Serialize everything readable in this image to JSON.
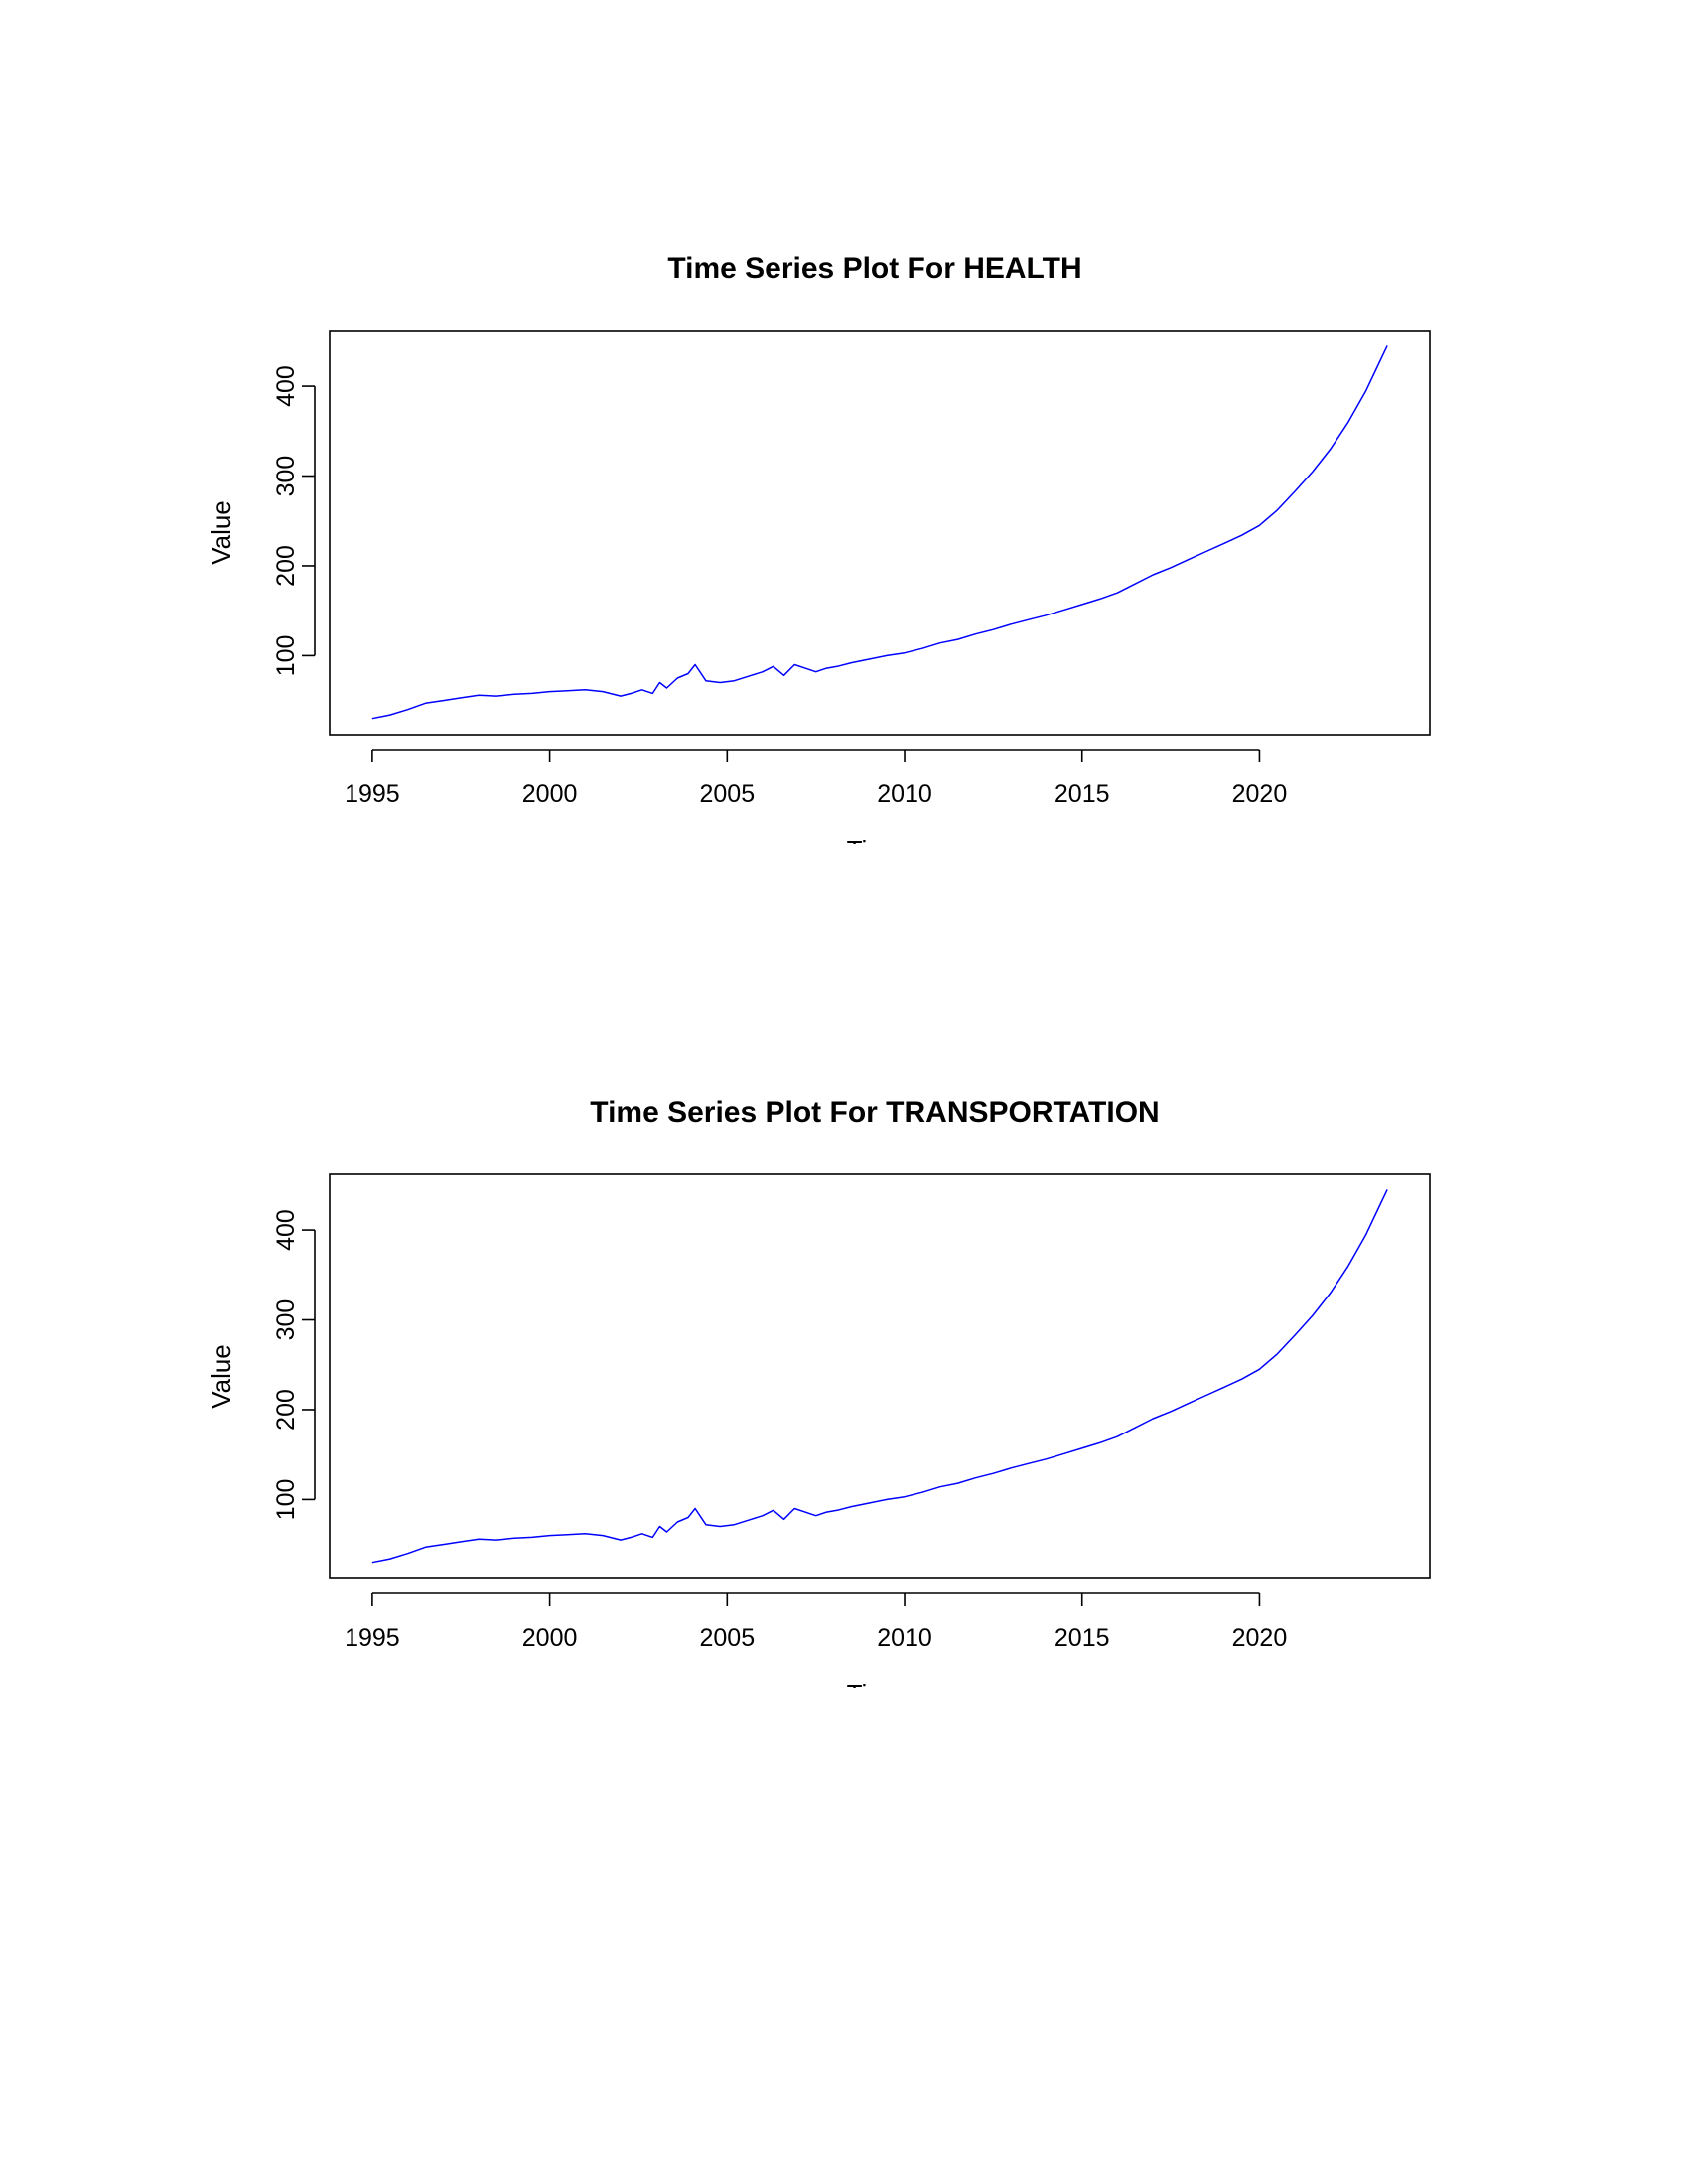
{
  "chart_data": [
    {
      "type": "line",
      "title": "Time Series Plot For HEALTH",
      "xlabel": "Time",
      "ylabel": "Value",
      "xlim": [
        1993.8,
        2024.8
      ],
      "ylim": [
        12,
        462
      ],
      "x_ticks": [
        1995,
        2000,
        2005,
        2010,
        2015,
        2020
      ],
      "y_ticks": [
        100,
        200,
        300,
        400
      ],
      "grid": false,
      "color": "#0000ff",
      "series": [
        {
          "x": [
            1995.0,
            1995.5,
            1996.0,
            1996.5,
            1997.0,
            1997.5,
            1998.0,
            1998.5,
            1999.0,
            1999.5,
            2000.0,
            2000.5,
            2001.0,
            2001.5,
            2002.0,
            2002.3,
            2002.6,
            2002.9,
            2003.1,
            2003.3,
            2003.6,
            2003.9,
            2004.1,
            2004.4,
            2004.8,
            2005.2,
            2005.6,
            2006.0,
            2006.3,
            2006.6,
            2006.9,
            2007.2,
            2007.5,
            2007.8,
            2008.1,
            2008.5,
            2009.0,
            2009.5,
            2010.0,
            2010.5,
            2011.0,
            2011.5,
            2012.0,
            2012.5,
            2013.0,
            2013.5,
            2014.0,
            2014.5,
            2015.0,
            2015.5,
            2016.0,
            2016.5,
            2017.0,
            2017.5,
            2018.0,
            2018.5,
            2019.0,
            2019.5,
            2020.0,
            2020.5,
            2021.0,
            2021.5,
            2022.0,
            2022.5,
            2023.0,
            2023.3,
            2023.6
          ],
          "values": [
            30,
            34,
            40,
            47,
            50,
            53,
            56,
            55,
            57,
            58,
            60,
            61,
            62,
            60,
            55,
            58,
            62,
            58,
            70,
            64,
            75,
            80,
            90,
            72,
            70,
            72,
            77,
            82,
            88,
            78,
            90,
            86,
            82,
            86,
            88,
            92,
            96,
            100,
            103,
            108,
            114,
            118,
            124,
            129,
            135,
            140,
            145,
            151,
            157,
            163,
            170,
            180,
            190,
            198,
            207,
            216,
            225,
            234,
            245,
            262,
            283,
            305,
            330,
            360,
            395,
            420,
            445
          ]
        }
      ]
    },
    {
      "type": "line",
      "title": "Time Series Plot For TRANSPORTATION",
      "xlabel": "Time",
      "ylabel": "Value",
      "xlim": [
        1993.8,
        2024.8
      ],
      "ylim": [
        12,
        462
      ],
      "x_ticks": [
        1995,
        2000,
        2005,
        2010,
        2015,
        2020
      ],
      "y_ticks": [
        100,
        200,
        300,
        400
      ],
      "grid": false,
      "color": "#0000ff",
      "series": [
        {
          "x": [
            1995.0,
            1995.5,
            1996.0,
            1996.5,
            1997.0,
            1997.5,
            1998.0,
            1998.5,
            1999.0,
            1999.5,
            2000.0,
            2000.5,
            2001.0,
            2001.5,
            2002.0,
            2002.3,
            2002.6,
            2002.9,
            2003.1,
            2003.3,
            2003.6,
            2003.9,
            2004.1,
            2004.4,
            2004.8,
            2005.2,
            2005.6,
            2006.0,
            2006.3,
            2006.6,
            2006.9,
            2007.2,
            2007.5,
            2007.8,
            2008.1,
            2008.5,
            2009.0,
            2009.5,
            2010.0,
            2010.5,
            2011.0,
            2011.5,
            2012.0,
            2012.5,
            2013.0,
            2013.5,
            2014.0,
            2014.5,
            2015.0,
            2015.5,
            2016.0,
            2016.5,
            2017.0,
            2017.5,
            2018.0,
            2018.5,
            2019.0,
            2019.5,
            2020.0,
            2020.5,
            2021.0,
            2021.5,
            2022.0,
            2022.5,
            2023.0,
            2023.3,
            2023.6
          ],
          "values": [
            30,
            34,
            40,
            47,
            50,
            53,
            56,
            55,
            57,
            58,
            60,
            61,
            62,
            60,
            55,
            58,
            62,
            58,
            70,
            64,
            75,
            80,
            90,
            72,
            70,
            72,
            77,
            82,
            88,
            78,
            90,
            86,
            82,
            86,
            88,
            92,
            96,
            100,
            103,
            108,
            114,
            118,
            124,
            129,
            135,
            140,
            145,
            151,
            157,
            163,
            170,
            180,
            190,
            198,
            207,
            216,
            225,
            234,
            245,
            262,
            283,
            305,
            330,
            360,
            395,
            420,
            445
          ]
        }
      ]
    }
  ]
}
